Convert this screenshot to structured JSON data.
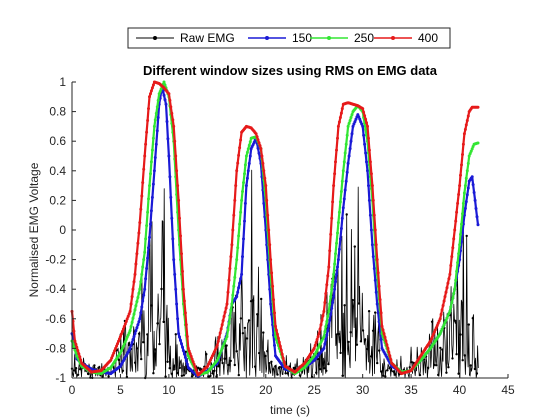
{
  "chart_data": {
    "type": "line",
    "title": "Different window sizes using RMS on EMG data",
    "xlabel": "time (s)",
    "ylabel": "Normalised EMG Voltage",
    "xlim": [
      0,
      45
    ],
    "ylim": [
      -1,
      1
    ],
    "x_ticks": [
      "0",
      "5",
      "10",
      "15",
      "20",
      "25",
      "30",
      "35",
      "40",
      "45"
    ],
    "y_ticks": [
      "-1",
      "-0.8",
      "-0.6",
      "-0.4",
      "-0.2",
      "0",
      "0.2",
      "0.4",
      "0.6",
      "0.8",
      "1"
    ],
    "grid": false,
    "legend_position": "top-outside",
    "series": [
      {
        "name": "Raw EMG",
        "color": "#000000",
        "marker": "dot",
        "style": "raw",
        "points": [
          [
            0,
            -0.85
          ],
          [
            1,
            -0.9
          ],
          [
            2,
            -0.92
          ],
          [
            3,
            -0.96
          ],
          [
            4,
            -0.95
          ],
          [
            5,
            -0.75
          ],
          [
            6,
            -0.55
          ],
          [
            7,
            -0.35
          ],
          [
            8,
            -0.1
          ],
          [
            8.5,
            0.2
          ],
          [
            9,
            0.9
          ],
          [
            9.3,
            0.5
          ],
          [
            10,
            -0.2
          ],
          [
            10.5,
            -0.6
          ],
          [
            11,
            -0.85
          ],
          [
            12,
            -0.95
          ],
          [
            13,
            -0.97
          ],
          [
            14,
            -0.9
          ],
          [
            15,
            -0.8
          ],
          [
            16,
            -0.7
          ],
          [
            17,
            -0.4
          ],
          [
            18,
            0.0
          ],
          [
            18.5,
            0.45
          ],
          [
            19,
            0.0
          ],
          [
            19.5,
            -0.5
          ],
          [
            20,
            -0.8
          ],
          [
            21,
            -0.92
          ],
          [
            22,
            -0.95
          ],
          [
            23,
            -0.93
          ],
          [
            24,
            -0.85
          ],
          [
            25,
            -0.75
          ],
          [
            26,
            -0.55
          ],
          [
            27,
            -0.3
          ],
          [
            28,
            0.0
          ],
          [
            29,
            0.3
          ],
          [
            29.5,
            0.75
          ],
          [
            30,
            0.1
          ],
          [
            31,
            -0.5
          ],
          [
            32,
            -0.85
          ],
          [
            33,
            -0.95
          ],
          [
            34,
            -0.96
          ],
          [
            35,
            -0.9
          ],
          [
            36,
            -0.8
          ],
          [
            37,
            -0.7
          ],
          [
            38,
            -0.5
          ],
          [
            39,
            -0.2
          ],
          [
            40,
            0.05
          ],
          [
            40.5,
            0.2
          ],
          [
            41,
            -0.3
          ],
          [
            41.5,
            -0.7
          ],
          [
            42,
            -0.9
          ]
        ]
      },
      {
        "name": "150",
        "color": "#1a1ad6",
        "marker": "dot",
        "points": [
          [
            0,
            -0.7
          ],
          [
            0.5,
            -0.87
          ],
          [
            1,
            -0.9
          ],
          [
            2,
            -0.94
          ],
          [
            3,
            -0.96
          ],
          [
            4,
            -0.97
          ],
          [
            5,
            -0.92
          ],
          [
            6,
            -0.8
          ],
          [
            7,
            -0.6
          ],
          [
            7.5,
            -0.4
          ],
          [
            8,
            -0.05
          ],
          [
            8.5,
            0.4
          ],
          [
            9,
            0.85
          ],
          [
            9.3,
            0.97
          ],
          [
            9.7,
            0.85
          ],
          [
            10,
            0.5
          ],
          [
            10.5,
            -0.2
          ],
          [
            11,
            -0.7
          ],
          [
            12,
            -0.93
          ],
          [
            13,
            -0.99
          ],
          [
            14,
            -0.95
          ],
          [
            15,
            -0.9
          ],
          [
            16,
            -0.7
          ],
          [
            16.5,
            -0.5
          ],
          [
            17,
            -0.45
          ],
          [
            17.5,
            -0.3
          ],
          [
            18,
            0.3
          ],
          [
            18.5,
            0.55
          ],
          [
            19,
            0.62
          ],
          [
            19.5,
            0.45
          ],
          [
            20,
            0.0
          ],
          [
            20.5,
            -0.5
          ],
          [
            21,
            -0.85
          ],
          [
            22,
            -0.94
          ],
          [
            23,
            -0.96
          ],
          [
            24,
            -0.93
          ],
          [
            25,
            -0.88
          ],
          [
            26,
            -0.8
          ],
          [
            26.5,
            -0.65
          ],
          [
            27,
            -0.45
          ],
          [
            27.5,
            -0.2
          ],
          [
            28,
            0.15
          ],
          [
            28.5,
            0.45
          ],
          [
            29,
            0.7
          ],
          [
            29.5,
            0.78
          ],
          [
            30,
            0.7
          ],
          [
            30.5,
            0.4
          ],
          [
            31,
            -0.1
          ],
          [
            31.5,
            -0.5
          ],
          [
            32,
            -0.8
          ],
          [
            33,
            -0.92
          ],
          [
            34,
            -0.96
          ],
          [
            35,
            -0.95
          ],
          [
            36,
            -0.88
          ],
          [
            37,
            -0.8
          ],
          [
            38,
            -0.7
          ],
          [
            39,
            -0.55
          ],
          [
            39.5,
            -0.4
          ],
          [
            40,
            -0.2
          ],
          [
            40.5,
            0.1
          ],
          [
            41,
            0.33
          ],
          [
            41.3,
            0.36
          ],
          [
            41.6,
            0.2
          ],
          [
            42,
            -0.02
          ]
        ]
      },
      {
        "name": "250",
        "color": "#33e633",
        "marker": "dot",
        "points": [
          [
            0,
            -0.75
          ],
          [
            0.5,
            -0.85
          ],
          [
            1,
            -0.92
          ],
          [
            2,
            -0.96
          ],
          [
            3,
            -0.97
          ],
          [
            4,
            -0.93
          ],
          [
            5,
            -0.83
          ],
          [
            6,
            -0.68
          ],
          [
            7,
            -0.4
          ],
          [
            7.5,
            -0.15
          ],
          [
            8,
            0.3
          ],
          [
            8.5,
            0.7
          ],
          [
            9,
            0.92
          ],
          [
            9.5,
            1.0
          ],
          [
            10,
            0.9
          ],
          [
            10.5,
            0.6
          ],
          [
            11,
            0.0
          ],
          [
            11.5,
            -0.5
          ],
          [
            12,
            -0.85
          ],
          [
            13,
            -0.98
          ],
          [
            14,
            -0.96
          ],
          [
            15,
            -0.88
          ],
          [
            16,
            -0.72
          ],
          [
            16.5,
            -0.5
          ],
          [
            17,
            -0.2
          ],
          [
            17.5,
            0.2
          ],
          [
            18,
            0.5
          ],
          [
            18.5,
            0.62
          ],
          [
            19,
            0.63
          ],
          [
            19.5,
            0.55
          ],
          [
            20,
            0.2
          ],
          [
            20.5,
            -0.3
          ],
          [
            21,
            -0.72
          ],
          [
            22,
            -0.92
          ],
          [
            23,
            -0.97
          ],
          [
            24,
            -0.93
          ],
          [
            25,
            -0.85
          ],
          [
            26,
            -0.72
          ],
          [
            26.5,
            -0.55
          ],
          [
            27,
            -0.3
          ],
          [
            27.5,
            0.05
          ],
          [
            28,
            0.4
          ],
          [
            28.5,
            0.7
          ],
          [
            29,
            0.8
          ],
          [
            29.5,
            0.84
          ],
          [
            30,
            0.8
          ],
          [
            30.5,
            0.6
          ],
          [
            31,
            0.2
          ],
          [
            31.5,
            -0.3
          ],
          [
            32,
            -0.7
          ],
          [
            33,
            -0.9
          ],
          [
            34,
            -0.96
          ],
          [
            35,
            -0.95
          ],
          [
            36,
            -0.88
          ],
          [
            37,
            -0.8
          ],
          [
            38,
            -0.7
          ],
          [
            39,
            -0.55
          ],
          [
            39.5,
            -0.4
          ],
          [
            40,
            -0.1
          ],
          [
            40.5,
            0.25
          ],
          [
            41,
            0.5
          ],
          [
            41.5,
            0.58
          ],
          [
            42,
            0.59
          ]
        ]
      },
      {
        "name": "400",
        "color": "#e61a1a",
        "marker": "dot",
        "points": [
          [
            0,
            -0.55
          ],
          [
            0.3,
            -0.75
          ],
          [
            1,
            -0.9
          ],
          [
            2,
            -0.96
          ],
          [
            3,
            -0.95
          ],
          [
            4,
            -0.88
          ],
          [
            5,
            -0.72
          ],
          [
            6,
            -0.55
          ],
          [
            6.5,
            -0.3
          ],
          [
            7,
            0.05
          ],
          [
            7.5,
            0.5
          ],
          [
            8,
            0.9
          ],
          [
            8.5,
            1.0
          ],
          [
            9,
            0.99
          ],
          [
            9.5,
            0.96
          ],
          [
            10,
            0.92
          ],
          [
            10.5,
            0.7
          ],
          [
            11,
            0.2
          ],
          [
            11.5,
            -0.4
          ],
          [
            12,
            -0.8
          ],
          [
            13,
            -0.98
          ],
          [
            14,
            -0.92
          ],
          [
            15,
            -0.78
          ],
          [
            16,
            -0.5
          ],
          [
            16.5,
            -0.1
          ],
          [
            17,
            0.4
          ],
          [
            17.5,
            0.66
          ],
          [
            18,
            0.7
          ],
          [
            18.5,
            0.69
          ],
          [
            19,
            0.65
          ],
          [
            19.5,
            0.55
          ],
          [
            20,
            0.3
          ],
          [
            20.5,
            -0.2
          ],
          [
            21,
            -0.65
          ],
          [
            22,
            -0.92
          ],
          [
            23,
            -0.96
          ],
          [
            24,
            -0.9
          ],
          [
            25,
            -0.8
          ],
          [
            25.5,
            -0.7
          ],
          [
            26,
            -0.55
          ],
          [
            26.5,
            -0.25
          ],
          [
            27,
            0.3
          ],
          [
            27.5,
            0.7
          ],
          [
            28,
            0.85
          ],
          [
            28.5,
            0.86
          ],
          [
            29,
            0.85
          ],
          [
            29.5,
            0.84
          ],
          [
            30,
            0.82
          ],
          [
            30.5,
            0.7
          ],
          [
            31,
            0.3
          ],
          [
            31.5,
            -0.2
          ],
          [
            32,
            -0.65
          ],
          [
            33,
            -0.9
          ],
          [
            34,
            -0.97
          ],
          [
            35,
            -0.95
          ],
          [
            36,
            -0.85
          ],
          [
            37,
            -0.75
          ],
          [
            38,
            -0.6
          ],
          [
            39,
            -0.3
          ],
          [
            39.5,
            0.0
          ],
          [
            40,
            0.3
          ],
          [
            40.5,
            0.65
          ],
          [
            41,
            0.8
          ],
          [
            41.3,
            0.83
          ],
          [
            42,
            0.83
          ]
        ]
      }
    ]
  }
}
